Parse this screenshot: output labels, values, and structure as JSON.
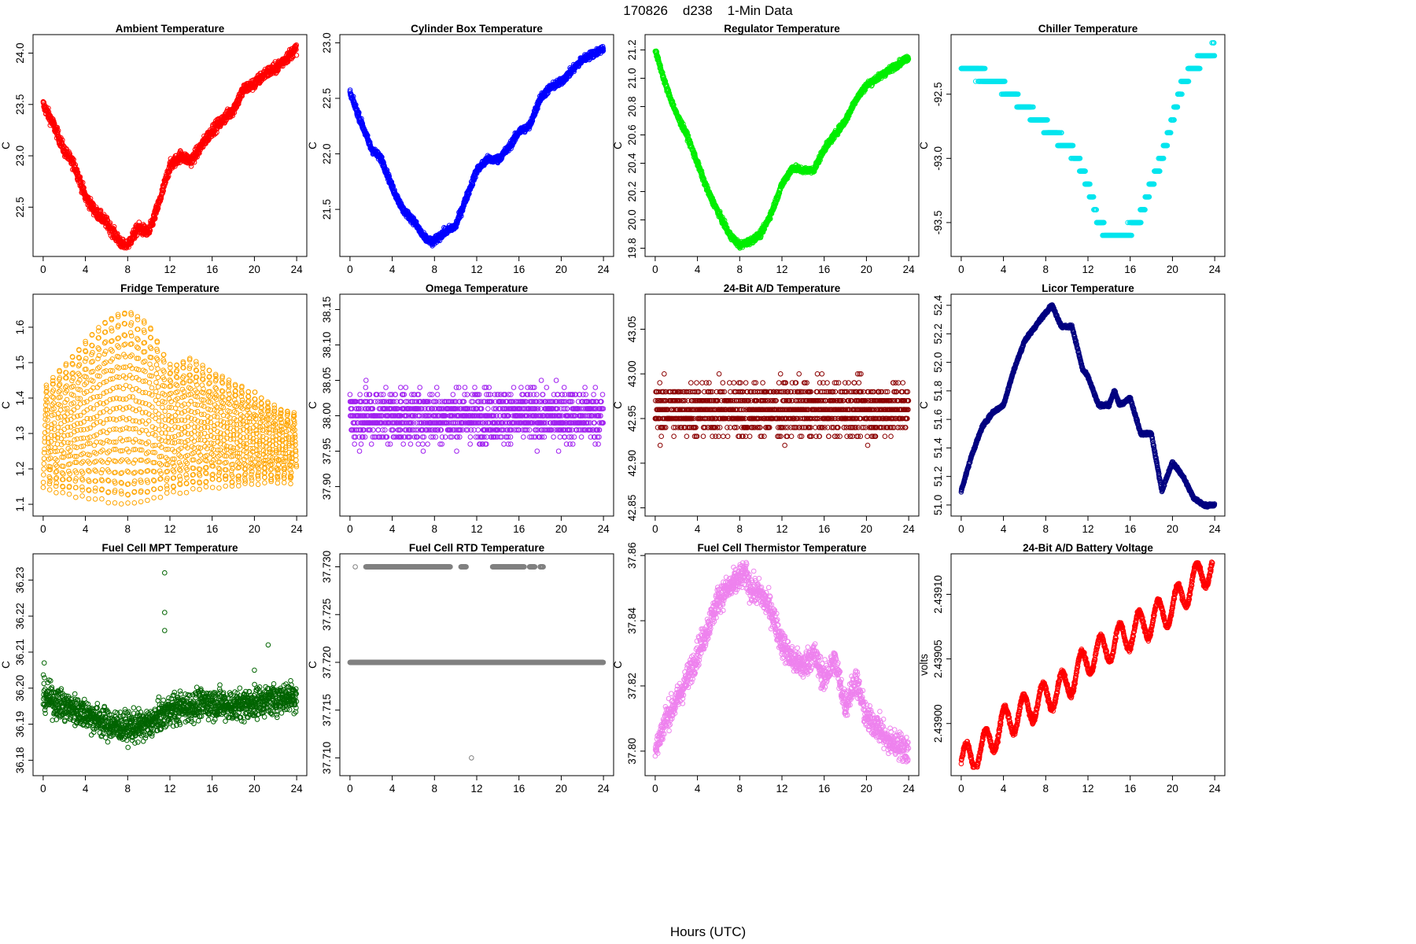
{
  "figure": {
    "title": "170826    d238    1-Min Data",
    "xlabel": "Hours (UTC)"
  },
  "chart_data": [
    {
      "type": "scatter",
      "title": "Ambient Temperature",
      "ylabel": "C",
      "color": "#ff0000",
      "xlim": [
        0,
        24
      ],
      "ylim": [
        22.1,
        24.1
      ],
      "xticks": [
        "0",
        "4",
        "8",
        "12",
        "16",
        "20",
        "24"
      ],
      "yticks": [
        "22.5",
        "23.0",
        "23.5",
        "24.0"
      ],
      "x": [
        0,
        1,
        2,
        3,
        4,
        5,
        6,
        7,
        7.8,
        9,
        10,
        11,
        12,
        13,
        14,
        15,
        16,
        17,
        18,
        19,
        20,
        21,
        22,
        23,
        24
      ],
      "y": [
        23.5,
        23.3,
        23.05,
        22.9,
        22.6,
        22.45,
        22.35,
        22.2,
        22.1,
        22.3,
        22.25,
        22.55,
        22.9,
        23.0,
        22.95,
        23.1,
        23.25,
        23.35,
        23.45,
        23.65,
        23.7,
        23.8,
        23.85,
        23.95,
        24.05
      ],
      "noise": 0.05
    },
    {
      "type": "scatter",
      "title": "Cylinder Box Temperature",
      "ylabel": "C",
      "color": "#0000ff",
      "xlim": [
        0,
        24
      ],
      "ylim": [
        21.15,
        23.0
      ],
      "xticks": [
        "0",
        "4",
        "8",
        "12",
        "16",
        "20",
        "24"
      ],
      "yticks": [
        "21.5",
        "22.0",
        "22.5",
        "23.0"
      ],
      "x": [
        0,
        1,
        2,
        3,
        4,
        5,
        6,
        7,
        7.8,
        9,
        10,
        11,
        12,
        13,
        14,
        15,
        16,
        17,
        18,
        19,
        20,
        21,
        22,
        23,
        24
      ],
      "y": [
        22.55,
        22.3,
        22.05,
        21.95,
        21.7,
        21.5,
        21.4,
        21.25,
        21.2,
        21.3,
        21.35,
        21.6,
        21.85,
        21.95,
        21.95,
        22.05,
        22.2,
        22.25,
        22.5,
        22.6,
        22.65,
        22.75,
        22.85,
        22.9,
        22.95
      ],
      "noise": 0.03
    },
    {
      "type": "scatter",
      "title": "Regulator Temperature",
      "ylabel": "C",
      "color": "#00ee00",
      "xlim": [
        0,
        24
      ],
      "ylim": [
        19.8,
        21.25
      ],
      "xticks": [
        "0",
        "4",
        "8",
        "12",
        "16",
        "20",
        "24"
      ],
      "yticks": [
        "19.8",
        "20.0",
        "20.2",
        "20.4",
        "20.6",
        "20.8",
        "21.0",
        "21.2"
      ],
      "x": [
        0,
        1,
        2,
        3,
        4,
        5,
        6,
        7,
        8,
        9,
        10,
        11,
        12,
        13,
        14,
        15,
        16,
        17,
        18,
        19,
        20,
        21,
        22,
        23,
        24
      ],
      "y": [
        21.2,
        20.95,
        20.75,
        20.6,
        20.4,
        20.2,
        20.05,
        19.9,
        19.82,
        19.85,
        19.9,
        20.05,
        20.25,
        20.37,
        20.35,
        20.35,
        20.5,
        20.6,
        20.7,
        20.85,
        20.95,
        21.0,
        21.05,
        21.1,
        21.15
      ],
      "noise": 0.02
    },
    {
      "type": "scatter",
      "title": "Chiller Temperature",
      "ylabel": "C",
      "color": "#00e5ee",
      "step": 0.1,
      "xlim": [
        0,
        24
      ],
      "ylim": [
        -93.7,
        -92.1
      ],
      "xticks": [
        "0",
        "4",
        "8",
        "12",
        "16",
        "20",
        "24"
      ],
      "yticks": [
        "-92.5",
        "-93.0",
        "-93.5"
      ],
      "x": [
        0,
        2,
        4,
        6,
        8,
        10,
        11,
        12,
        12.5,
        13,
        14,
        15,
        16,
        17,
        18,
        19,
        20,
        21,
        22,
        23,
        24
      ],
      "y": [
        -92.3,
        -92.35,
        -92.45,
        -92.6,
        -92.75,
        -92.9,
        -93.0,
        -93.2,
        -93.35,
        -93.5,
        -93.6,
        -93.6,
        -93.55,
        -93.45,
        -93.2,
        -93.0,
        -92.7,
        -92.4,
        -92.3,
        -92.2,
        -92.15
      ],
      "noise": 0.02
    },
    {
      "type": "scatter",
      "title": "Fridge Temperature",
      "ylabel": "C",
      "color": "#ffa500",
      "mode": "envelope",
      "xlim": [
        0,
        24
      ],
      "ylim": [
        1.09,
        1.67
      ],
      "xticks": [
        "0",
        "4",
        "8",
        "12",
        "16",
        "20",
        "24"
      ],
      "yticks": [
        "1.1",
        "1.2",
        "1.3",
        "1.4",
        "1.5",
        "1.6"
      ],
      "x": [
        0,
        2,
        4,
        6,
        8,
        10,
        12,
        14,
        16,
        18,
        20,
        22,
        24
      ],
      "ymin": [
        1.15,
        1.13,
        1.12,
        1.11,
        1.1,
        1.11,
        1.13,
        1.14,
        1.15,
        1.15,
        1.16,
        1.16,
        1.16
      ],
      "ymax": [
        1.43,
        1.5,
        1.57,
        1.63,
        1.66,
        1.62,
        1.5,
        1.52,
        1.48,
        1.45,
        1.42,
        1.38,
        1.36
      ]
    },
    {
      "type": "scatter",
      "title": "Omega Temperature",
      "ylabel": "C",
      "color": "#a020f0",
      "mode": "quantized",
      "step": 0.01,
      "xlim": [
        0,
        24
      ],
      "ylim": [
        37.87,
        38.16
      ],
      "xticks": [
        "0",
        "4",
        "8",
        "12",
        "16",
        "20",
        "24"
      ],
      "yticks": [
        "37.90",
        "37.95",
        "38.00",
        "38.05",
        "38.10",
        "38.15"
      ],
      "center": 38.0,
      "spread": [
        37.87,
        38.16
      ]
    },
    {
      "type": "scatter",
      "title": "24-Bit A/D Temperature",
      "ylabel": "C",
      "color": "#8b0000",
      "mode": "quantized",
      "step": 0.01,
      "xlim": [
        0,
        24
      ],
      "ylim": [
        42.85,
        43.08
      ],
      "xticks": [
        "0",
        "4",
        "8",
        "12",
        "16",
        "20",
        "24"
      ],
      "yticks": [
        "42.85",
        "42.90",
        "42.95",
        "43.00",
        "43.05"
      ],
      "center": 42.96,
      "spread": [
        42.85,
        43.08
      ]
    },
    {
      "type": "scatter",
      "title": "Licor Temperature",
      "ylabel": "C",
      "color": "#000080",
      "xlim": [
        0,
        24
      ],
      "ylim": [
        50.98,
        52.42
      ],
      "xticks": [
        "0",
        "4",
        "8",
        "12",
        "16",
        "20",
        "24"
      ],
      "yticks": [
        "51.0",
        "51.2",
        "51.4",
        "51.6",
        "51.8",
        "52.0",
        "52.2",
        "52.4"
      ],
      "x": [
        0,
        1,
        2,
        3,
        4,
        5,
        6,
        7,
        8,
        8.6,
        9.5,
        10.5,
        11.5,
        12,
        13,
        14,
        14.5,
        15,
        16,
        17,
        18,
        19,
        20,
        21,
        22,
        23,
        24
      ],
      "y": [
        51.1,
        51.35,
        51.55,
        51.65,
        51.7,
        51.95,
        52.15,
        52.25,
        52.35,
        52.4,
        52.25,
        52.25,
        51.95,
        51.9,
        51.7,
        51.7,
        51.8,
        51.7,
        51.75,
        51.5,
        51.5,
        51.1,
        51.3,
        51.2,
        51.05,
        51.0,
        51.0
      ],
      "noise": 0.01
    },
    {
      "type": "scatter",
      "title": "Fuel Cell MPT Temperature",
      "ylabel": "C",
      "color": "#006400",
      "mode": "noisy",
      "xlim": [
        0,
        24
      ],
      "ylim": [
        36.178,
        36.235
      ],
      "xticks": [
        "0",
        "4",
        "8",
        "12",
        "16",
        "20",
        "24"
      ],
      "yticks": [
        "36.18",
        "36.19",
        "36.20",
        "36.21",
        "36.22",
        "36.23"
      ],
      "x": [
        0,
        2,
        4,
        6,
        8,
        10,
        12,
        14,
        16,
        18,
        20,
        22,
        24
      ],
      "y": [
        36.198,
        36.195,
        36.193,
        36.19,
        36.189,
        36.19,
        36.194,
        36.195,
        36.196,
        36.195,
        36.196,
        36.197,
        36.198
      ],
      "noise": 0.004,
      "outliers": [
        [
          11.5,
          36.232
        ],
        [
          11.5,
          36.221
        ],
        [
          11.5,
          36.216
        ],
        [
          21.3,
          36.212
        ],
        [
          0.1,
          36.207
        ],
        [
          20.0,
          36.205
        ]
      ]
    },
    {
      "type": "scatter",
      "title": "Fuel Cell RTD Temperature",
      "ylabel": "C",
      "color": "#808080",
      "mode": "bilevel",
      "xlim": [
        0,
        24
      ],
      "ylim": [
        37.709,
        37.7305
      ],
      "xticks": [
        "0",
        "4",
        "8",
        "12",
        "16",
        "20",
        "24"
      ],
      "yticks": [
        "37.710",
        "37.715",
        "37.720",
        "37.725",
        "37.730"
      ],
      "levels": [
        37.72,
        37.73
      ],
      "upper_ranges": [
        [
          0.5,
          0.5
        ],
        [
          1.5,
          9.5
        ],
        [
          10.5,
          11.0
        ],
        [
          13.5,
          16.5
        ],
        [
          17.0,
          17.5
        ],
        [
          18.0,
          18.3
        ]
      ],
      "outliers": [
        [
          11.5,
          37.71
        ]
      ]
    },
    {
      "type": "scatter",
      "title": "Fuel Cell Thermistor Temperature",
      "ylabel": "C",
      "color": "#ee82ee",
      "xlim": [
        0,
        24
      ],
      "ylim": [
        37.795,
        37.858
      ],
      "xticks": [
        "0",
        "4",
        "8",
        "12",
        "16",
        "20",
        "24"
      ],
      "yticks": [
        "37.80",
        "37.82",
        "37.84",
        "37.86"
      ],
      "x": [
        0,
        1,
        2,
        3,
        4,
        5,
        6,
        7,
        8,
        8.5,
        9,
        10,
        11,
        12,
        13,
        14,
        15,
        16,
        17,
        18,
        19,
        20,
        21,
        22,
        23,
        24
      ],
      "y": [
        37.8,
        37.81,
        37.815,
        37.822,
        37.83,
        37.838,
        37.847,
        37.85,
        37.853,
        37.855,
        37.85,
        37.848,
        37.843,
        37.833,
        37.828,
        37.826,
        37.83,
        37.822,
        37.828,
        37.814,
        37.822,
        37.81,
        37.808,
        37.803,
        37.802,
        37.8
      ],
      "noise": 0.004
    },
    {
      "type": "scatter",
      "title": "24-Bit A/D Battery Voltage",
      "ylabel": "volts",
      "color": "#ff0000",
      "xlim": [
        0,
        24
      ],
      "ylim": [
        2.438966,
        2.439125
      ],
      "xticks": [
        "0",
        "4",
        "8",
        "12",
        "16",
        "20",
        "24"
      ],
      "yticks": [
        "2.43900",
        "2.43905",
        "2.43910"
      ],
      "x": [
        0,
        2,
        4,
        6,
        8,
        10,
        12,
        14,
        16,
        18,
        20,
        22,
        23.3,
        24
      ],
      "y": [
        2.43897,
        2.43898,
        2.439,
        2.43901,
        2.43902,
        2.43903,
        2.43905,
        2.43906,
        2.43907,
        2.43908,
        2.43909,
        2.43911,
        2.43912,
        2.43912
      ],
      "wave": 1.2e-05,
      "noise": 2e-06
    }
  ]
}
